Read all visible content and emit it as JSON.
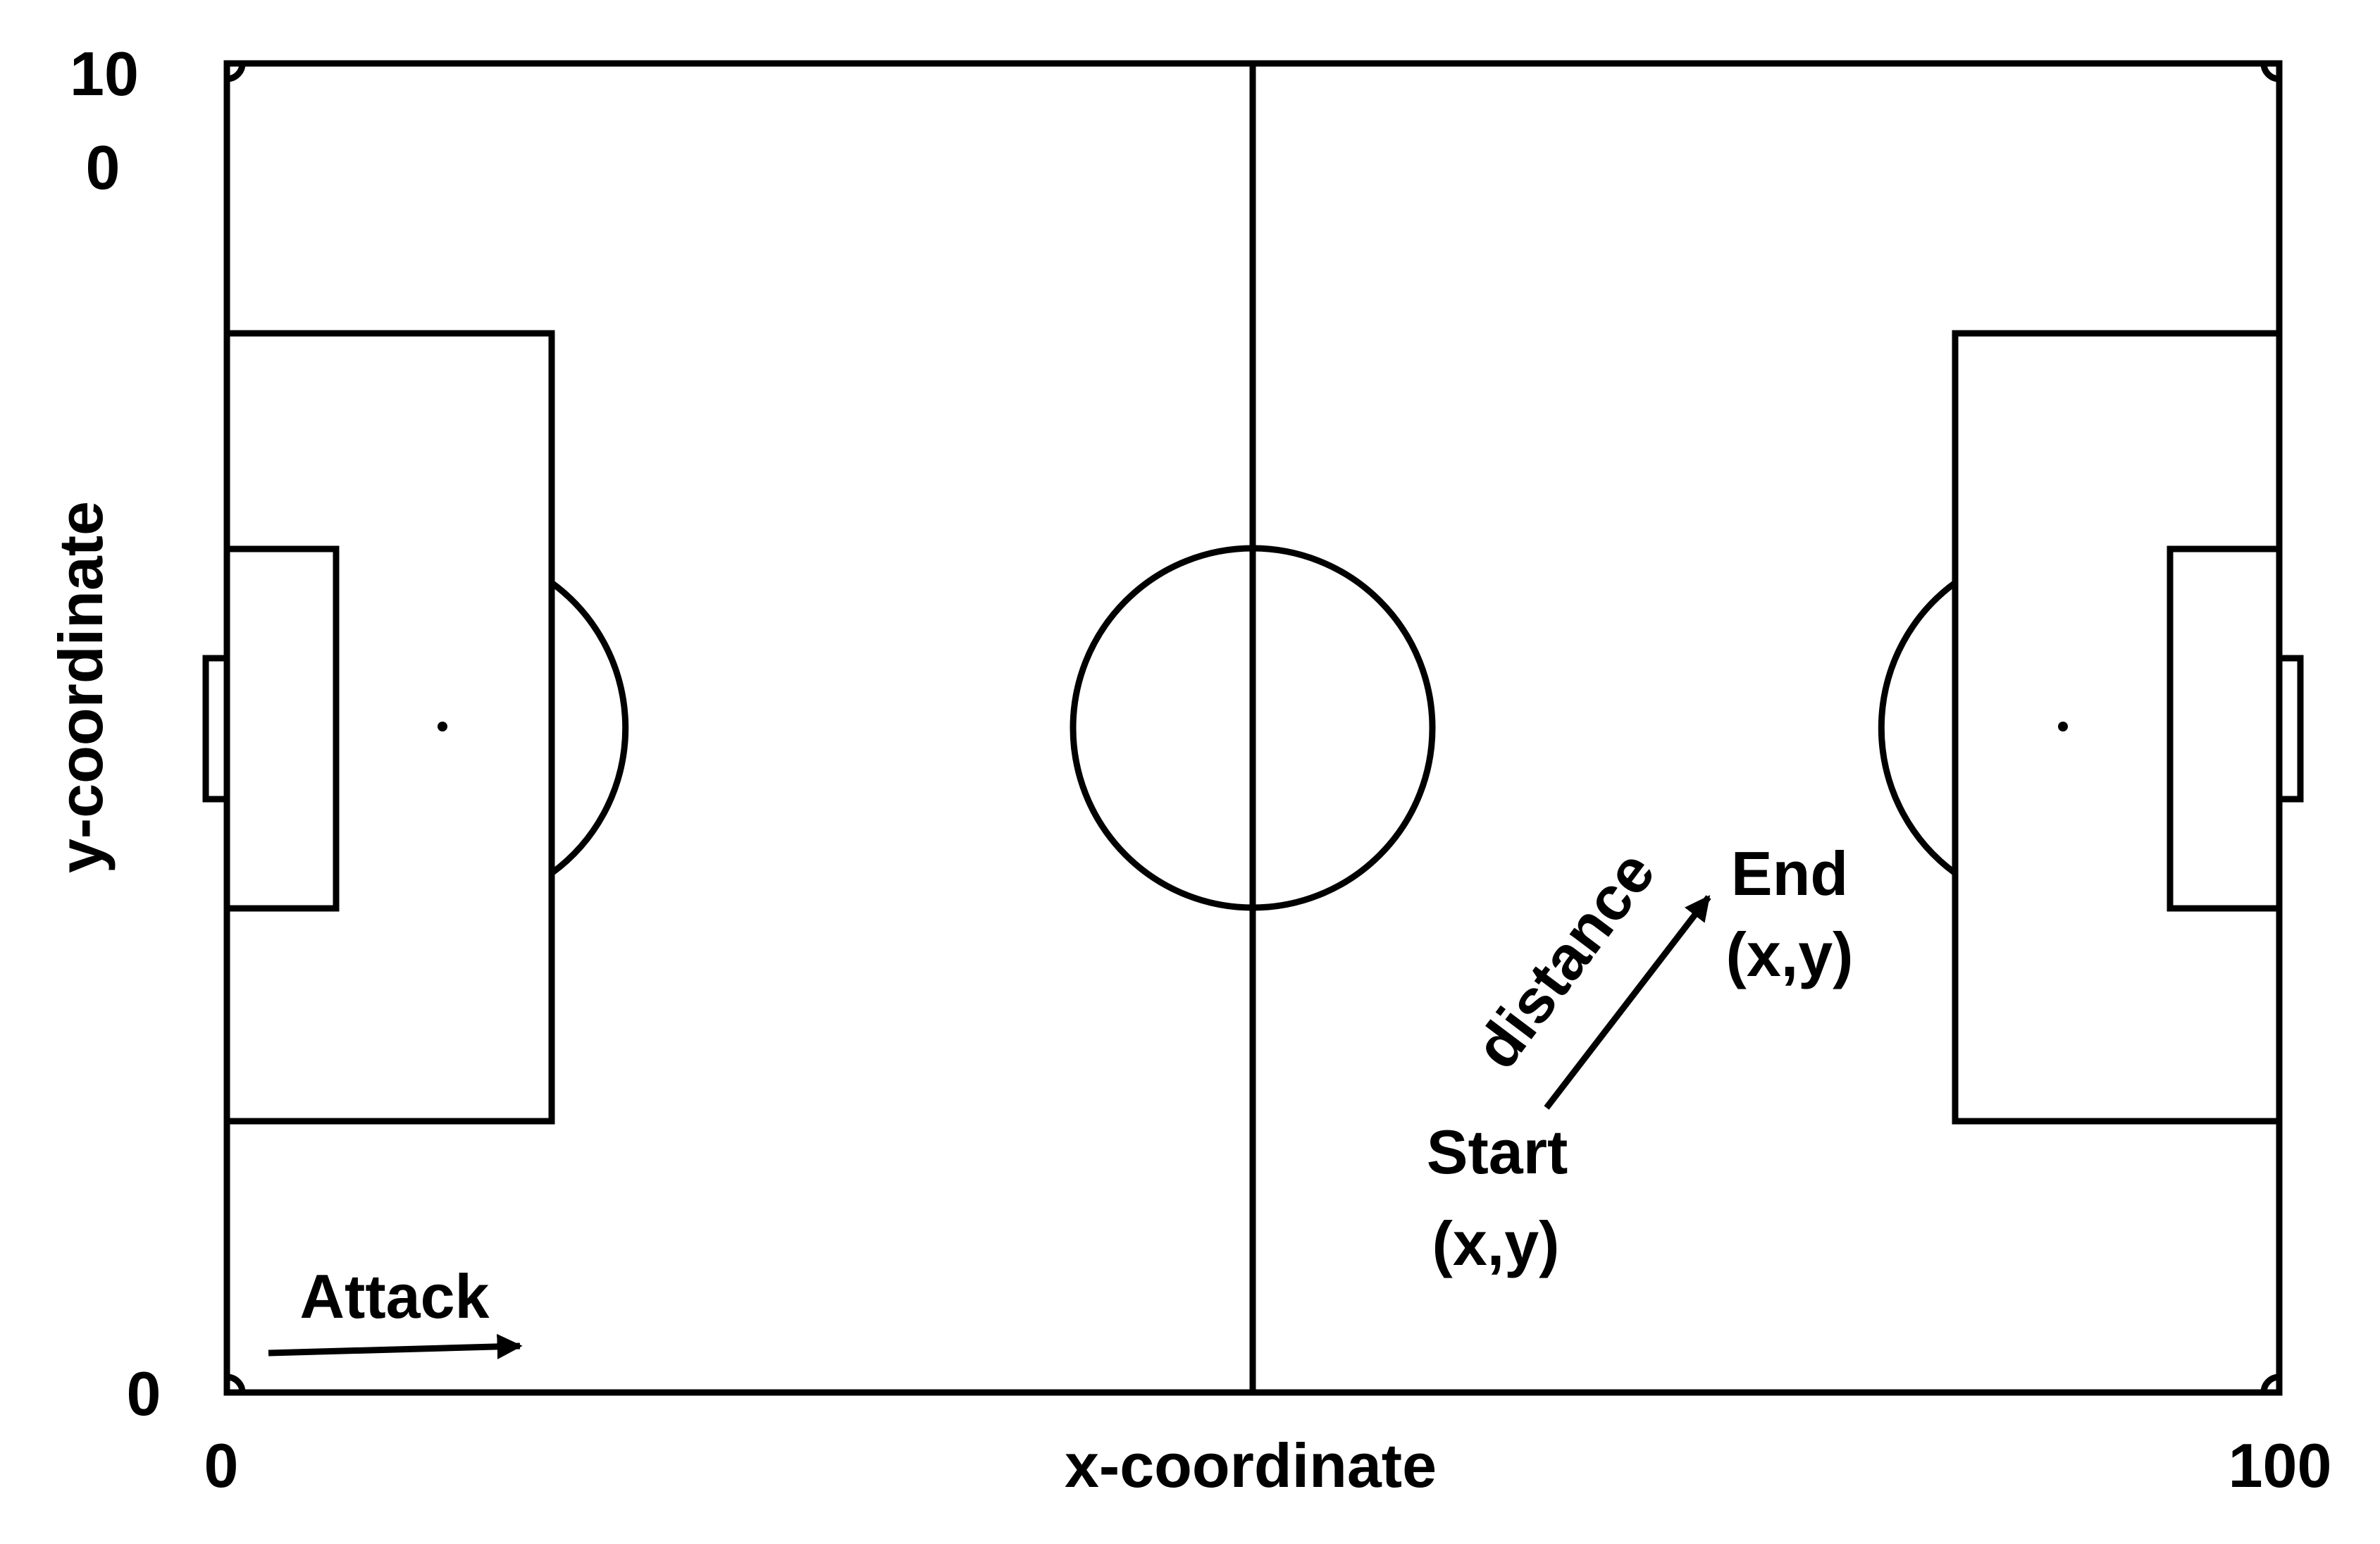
{
  "axes": {
    "x_label": "x-coordinate",
    "y_label": "y-coordinate",
    "x_tick_min": "0",
    "x_tick_max": "100",
    "y_tick_min": "0",
    "y_tick_max_line1": "10",
    "y_tick_max_line2": "0"
  },
  "annotations": {
    "attack": "Attack",
    "distance": "distance",
    "start": "Start",
    "start_coords": "(x,y)",
    "end": "End",
    "end_coords": "(x,y)"
  },
  "colors": {
    "line": "#000000",
    "background": "#ffffff"
  }
}
